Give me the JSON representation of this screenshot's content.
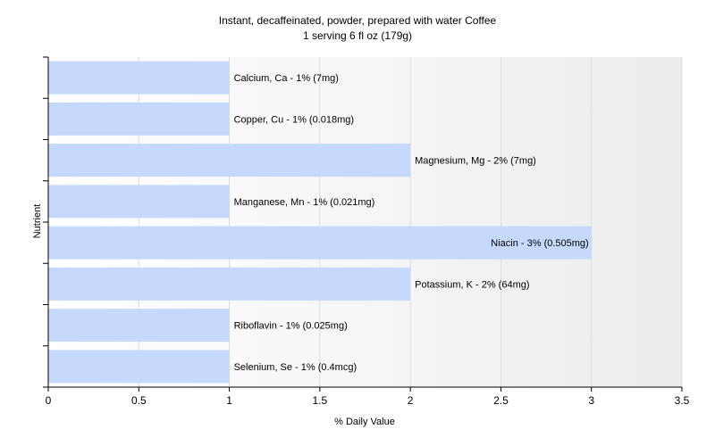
{
  "chart_data": {
    "type": "bar",
    "orientation": "horizontal",
    "title": "Instant, decaffeinated, powder, prepared with water Coffee",
    "subtitle": "1 serving 6 fl oz (179g)",
    "xlabel": "% Daily Value",
    "ylabel": "Nutrient",
    "xlim": [
      0,
      3.5
    ],
    "xticks": [
      "0",
      "0.5",
      "1",
      "1.5",
      "2",
      "2.5",
      "3",
      "3.5"
    ],
    "grid": true,
    "bar_color": "#c4d9fb",
    "categories": [
      "Calcium, Ca",
      "Copper, Cu",
      "Magnesium, Mg",
      "Manganese, Mn",
      "Niacin",
      "Potassium, K",
      "Riboflavin",
      "Selenium, Se"
    ],
    "values": [
      1,
      1,
      2,
      1,
      3,
      2,
      1,
      1
    ],
    "labels": [
      "Calcium, Ca - 1% (7mg)",
      "Copper, Cu - 1% (0.018mg)",
      "Magnesium, Mg - 2% (7mg)",
      "Manganese, Mn - 1% (0.021mg)",
      "Niacin - 3% (0.505mg)",
      "Potassium, K - 2% (64mg)",
      "Riboflavin - 1% (0.025mg)",
      "Selenium, Se - 1% (0.4mcg)"
    ]
  }
}
